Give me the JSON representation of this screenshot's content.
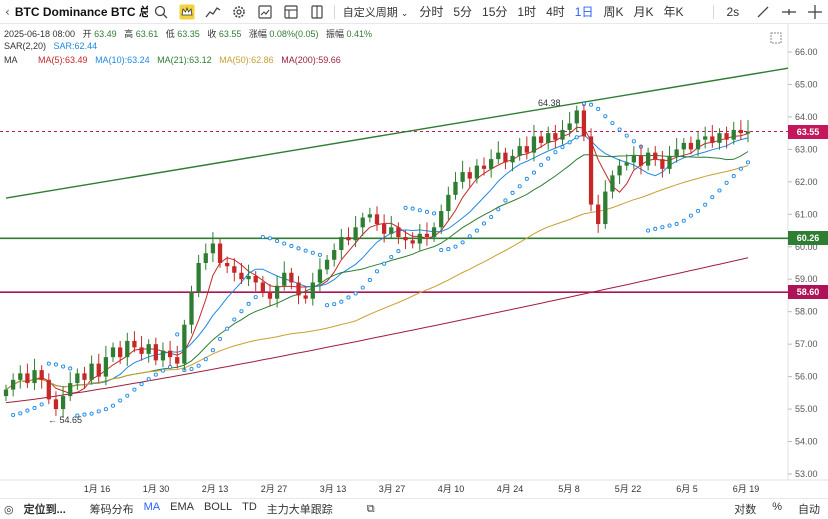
{
  "toolbar": {
    "title": "BTC Dominance BTC 总市...",
    "timeframes": [
      "分时",
      "5分",
      "15分",
      "1时",
      "4时",
      "1日",
      "周K",
      "月K",
      "年K"
    ],
    "active_timeframe": "1日",
    "custom_period": "自定义周期",
    "refresh": "2s"
  },
  "legend": {
    "date": "2025-06-18 08:00",
    "open_label": "开",
    "open": "63.49",
    "high_label": "高",
    "high": "63.61",
    "low_label": "低",
    "low": "63.35",
    "close_label": "收",
    "close": "63.55",
    "change_label": "涨幅",
    "change": "0.08%(0.05)",
    "amp_label": "振幅",
    "amp": "0.41%",
    "sar_name": "SAR(2,20)",
    "sar_value": "SAR:62.44",
    "ma_name": "MA",
    "ma5": "MA(5):63.49",
    "ma10": "MA(10):63.24",
    "ma21": "MA(21):63.12",
    "ma50": "MA(50):62.86",
    "ma200": "MA(200):59.66"
  },
  "price_axis": {
    "ticks": [
      "66.00",
      "65.00",
      "64.00",
      "63.00",
      "62.00",
      "61.00",
      "60.00",
      "59.00",
      "58.00",
      "57.00",
      "56.00",
      "55.00",
      "54.00",
      "53.00"
    ],
    "tags": [
      {
        "value": "63.55",
        "color": "#c2185b"
      },
      {
        "value": "60.26",
        "color": "#2e7d32"
      },
      {
        "value": "58.60",
        "color": "#ad1457"
      }
    ]
  },
  "date_axis": [
    "1月 16",
    "1月 30",
    "2月 13",
    "2月 27",
    "3月 13",
    "3月 27",
    "4月 10",
    "4月 24",
    "5月 8",
    "5月 22",
    "6月 5",
    "6月 19"
  ],
  "annotations": {
    "high": "64.38",
    "low": "54.65"
  },
  "bottom_bar": {
    "locate": "定位到...",
    "items": [
      "筹码分布",
      "MA",
      "EMA",
      "BOLL",
      "TD",
      "主力大单跟踪"
    ],
    "active": "MA",
    "right": [
      "对数",
      "%",
      "自动"
    ]
  },
  "colors": {
    "up": "#2e7d32",
    "down": "#c62828",
    "ma5": "#c62828",
    "ma10": "#1e88e5",
    "ma21": "#2e7d32",
    "ma50": "#c8a032",
    "ma200": "#a01e3c",
    "sar": "#1e88e5"
  },
  "chart_data": {
    "type": "candlestick",
    "ylim": [
      53,
      66.2
    ],
    "close_series": [
      55.6,
      55.9,
      56.1,
      55.8,
      56.2,
      55.9,
      55.3,
      55.0,
      55.4,
      55.8,
      56.1,
      55.9,
      56.4,
      56.0,
      56.6,
      56.9,
      56.6,
      57.1,
      56.9,
      56.7,
      57.0,
      56.5,
      56.8,
      56.6,
      56.4,
      57.6,
      58.6,
      59.5,
      59.8,
      60.1,
      59.5,
      59.4,
      59.2,
      59.0,
      59.1,
      58.9,
      58.6,
      58.4,
      58.8,
      59.2,
      58.9,
      58.5,
      58.4,
      58.9,
      59.3,
      59.6,
      59.9,
      60.3,
      60.2,
      60.6,
      60.9,
      61.0,
      60.7,
      60.4,
      60.6,
      60.3,
      60.2,
      60.1,
      60.4,
      60.3,
      60.6,
      61.1,
      61.6,
      62.0,
      62.3,
      62.1,
      62.5,
      62.4,
      62.7,
      62.9,
      62.6,
      62.8,
      63.1,
      62.9,
      63.4,
      63.2,
      63.5,
      63.3,
      63.6,
      63.8,
      64.2,
      63.4,
      61.3,
      60.7,
      61.7,
      62.2,
      62.5,
      62.6,
      62.8,
      62.5,
      62.9,
      62.7,
      62.4,
      62.8,
      63.0,
      63.2,
      63.0,
      63.3,
      63.4,
      63.2,
      63.5,
      63.3,
      63.6,
      63.5,
      63.55
    ],
    "open_series": [
      55.4,
      55.6,
      55.9,
      56.1,
      55.8,
      56.2,
      55.9,
      55.3,
      55.0,
      55.4,
      55.8,
      56.1,
      55.9,
      56.4,
      56.0,
      56.6,
      56.9,
      56.6,
      57.1,
      56.9,
      56.7,
      57.0,
      56.5,
      56.8,
      56.6,
      56.4,
      57.6,
      58.6,
      59.5,
      59.8,
      60.1,
      59.5,
      59.4,
      59.2,
      59.0,
      59.1,
      58.9,
      58.6,
      58.4,
      58.8,
      59.2,
      58.9,
      58.5,
      58.4,
      58.9,
      59.3,
      59.6,
      59.9,
      60.3,
      60.2,
      60.6,
      60.9,
      61.0,
      60.7,
      60.4,
      60.6,
      60.3,
      60.2,
      60.1,
      60.4,
      60.3,
      60.6,
      61.1,
      61.6,
      62.0,
      62.3,
      62.1,
      62.5,
      62.4,
      62.7,
      62.9,
      62.6,
      62.8,
      63.1,
      62.9,
      63.4,
      63.2,
      63.5,
      63.3,
      63.6,
      63.8,
      64.2,
      63.4,
      61.3,
      60.7,
      61.7,
      62.2,
      62.5,
      62.6,
      62.8,
      62.5,
      62.9,
      62.7,
      62.4,
      62.8,
      63.0,
      63.2,
      63.0,
      63.3,
      63.4,
      63.2,
      63.5,
      63.3,
      63.6,
      63.49
    ],
    "horizontal_lines": [
      63.55,
      60.26,
      58.6
    ],
    "trend_line": {
      "from": [
        0,
        61.5
      ],
      "to": [
        110,
        65.5
      ]
    }
  }
}
